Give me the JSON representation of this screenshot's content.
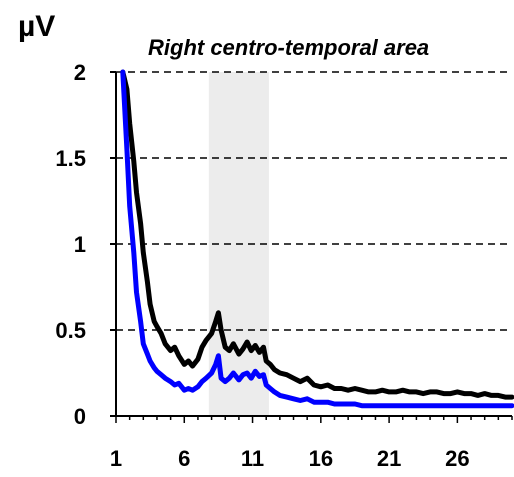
{
  "chart_data": {
    "type": "line",
    "title": "Right centro-temporal area",
    "ylabel": "µV",
    "xlabel": "",
    "xlim": [
      1,
      30
    ],
    "ylim": [
      0,
      2
    ],
    "xticks": [
      1,
      6,
      11,
      16,
      21,
      26
    ],
    "yticks": [
      0,
      0.5,
      1,
      1.5,
      2
    ],
    "ytick_labels": [
      "0",
      "0.5",
      "1",
      "1.5",
      "2"
    ],
    "grid": "dashed horizontal",
    "highlight_band": {
      "x_start": 7.8,
      "x_end": 12.2,
      "color": "#ececec"
    },
    "series": [
      {
        "color": "#000000",
        "x": [
          1.5,
          1.8,
          2.0,
          2.3,
          2.5,
          2.8,
          3.0,
          3.3,
          3.5,
          3.8,
          4.0,
          4.3,
          4.6,
          5.0,
          5.3,
          5.6,
          6.0,
          6.3,
          6.6,
          7.0,
          7.3,
          7.6,
          8.0,
          8.3,
          8.5,
          8.7,
          9.0,
          9.3,
          9.6,
          10.0,
          10.3,
          10.6,
          10.9,
          11.2,
          11.5,
          11.8,
          12.0,
          12.3,
          12.6,
          13.0,
          13.5,
          14.0,
          14.5,
          15.0,
          15.5,
          16.0,
          16.5,
          17.0,
          17.5,
          18.0,
          18.5,
          19.0,
          19.5,
          20.0,
          20.5,
          21.0,
          21.5,
          22.0,
          22.5,
          23.0,
          23.5,
          24.0,
          24.5,
          25.0,
          25.5,
          26.0,
          26.5,
          27.0,
          27.5,
          28.0,
          28.5,
          29.0,
          29.5,
          30.0
        ],
        "values": [
          2.0,
          1.9,
          1.7,
          1.48,
          1.3,
          1.12,
          0.95,
          0.78,
          0.65,
          0.55,
          0.52,
          0.48,
          0.42,
          0.38,
          0.4,
          0.35,
          0.3,
          0.32,
          0.29,
          0.33,
          0.4,
          0.44,
          0.48,
          0.55,
          0.6,
          0.5,
          0.4,
          0.38,
          0.42,
          0.36,
          0.39,
          0.43,
          0.38,
          0.41,
          0.37,
          0.4,
          0.32,
          0.3,
          0.27,
          0.25,
          0.24,
          0.22,
          0.2,
          0.22,
          0.18,
          0.17,
          0.18,
          0.16,
          0.16,
          0.15,
          0.16,
          0.15,
          0.14,
          0.14,
          0.15,
          0.14,
          0.14,
          0.15,
          0.14,
          0.14,
          0.13,
          0.14,
          0.14,
          0.13,
          0.13,
          0.14,
          0.13,
          0.13,
          0.12,
          0.13,
          0.12,
          0.12,
          0.11,
          0.11
        ]
      },
      {
        "color": "#0000ff",
        "x": [
          1.5,
          1.8,
          2.0,
          2.3,
          2.5,
          2.8,
          3.0,
          3.3,
          3.5,
          3.8,
          4.0,
          4.3,
          4.6,
          5.0,
          5.3,
          5.6,
          6.0,
          6.3,
          6.6,
          7.0,
          7.3,
          7.6,
          8.0,
          8.3,
          8.5,
          8.7,
          9.0,
          9.3,
          9.6,
          10.0,
          10.3,
          10.6,
          10.9,
          11.2,
          11.5,
          11.8,
          12.0,
          12.3,
          12.6,
          13.0,
          13.5,
          14.0,
          14.5,
          15.0,
          15.5,
          16.0,
          16.5,
          17.0,
          17.5,
          18.0,
          18.5,
          19.0,
          19.5,
          20.0,
          20.5,
          21.0,
          21.5,
          22.0,
          22.5,
          23.0,
          23.5,
          24.0,
          24.5,
          25.0,
          25.5,
          26.0,
          26.5,
          27.0,
          27.5,
          28.0,
          28.5,
          29.0,
          29.5,
          30.0
        ],
        "values": [
          2.0,
          1.55,
          1.22,
          0.95,
          0.72,
          0.55,
          0.42,
          0.36,
          0.32,
          0.28,
          0.26,
          0.24,
          0.22,
          0.2,
          0.18,
          0.19,
          0.15,
          0.16,
          0.15,
          0.17,
          0.2,
          0.22,
          0.25,
          0.3,
          0.35,
          0.22,
          0.2,
          0.22,
          0.25,
          0.21,
          0.24,
          0.25,
          0.22,
          0.26,
          0.23,
          0.24,
          0.18,
          0.16,
          0.14,
          0.12,
          0.11,
          0.1,
          0.09,
          0.1,
          0.08,
          0.08,
          0.08,
          0.07,
          0.07,
          0.07,
          0.07,
          0.06,
          0.06,
          0.06,
          0.06,
          0.06,
          0.06,
          0.06,
          0.06,
          0.06,
          0.06,
          0.06,
          0.06,
          0.06,
          0.06,
          0.06,
          0.06,
          0.06,
          0.06,
          0.06,
          0.06,
          0.06,
          0.06,
          0.06
        ]
      }
    ]
  }
}
